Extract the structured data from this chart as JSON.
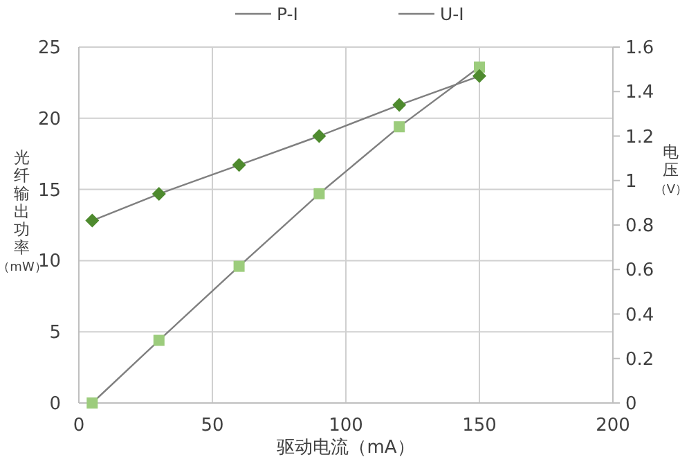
{
  "chart_data": {
    "type": "line",
    "xlabel": "驱动电流（mA）",
    "ylabel": "光纤输出功率（mW）",
    "y2label": "电压（V）",
    "x": [
      5,
      30,
      60,
      90,
      120,
      150
    ],
    "xlim": [
      0,
      200
    ],
    "xticks": [
      0,
      50,
      100,
      150,
      200
    ],
    "ylim": [
      0,
      25
    ],
    "yticks": [
      0,
      5,
      10,
      15,
      20,
      25
    ],
    "y2lim": [
      0,
      1.6
    ],
    "y2ticks": [
      0,
      0.2,
      0.4,
      0.6,
      0.8,
      1,
      1.2,
      1.4,
      1.6
    ],
    "grid": true,
    "legend": "top",
    "series": [
      {
        "name": "P-I",
        "color": "#7f7f7f",
        "marker": "square",
        "colors": [
          "#9ccc7c",
          "#9ccc7c",
          "#9ccc7c",
          "#9ccc7c",
          "#9ccc7c",
          "#9ccc7c"
        ],
        "values": [
          0,
          4.4,
          9.6,
          14.7,
          19.4,
          23.6
        ]
      },
      {
        "name": "U-I",
        "color": "#7f7f7f",
        "marker": "diamond",
        "axis": "y2",
        "colors": [
          "#4e8a2e",
          "#4e8a2e",
          "#4e8a2e",
          "#4e8a2e",
          "#4e8a2e",
          "#4e8a2e"
        ],
        "values": [
          0.82,
          0.94,
          1.07,
          1.2,
          1.34,
          1.47
        ]
      }
    ]
  }
}
